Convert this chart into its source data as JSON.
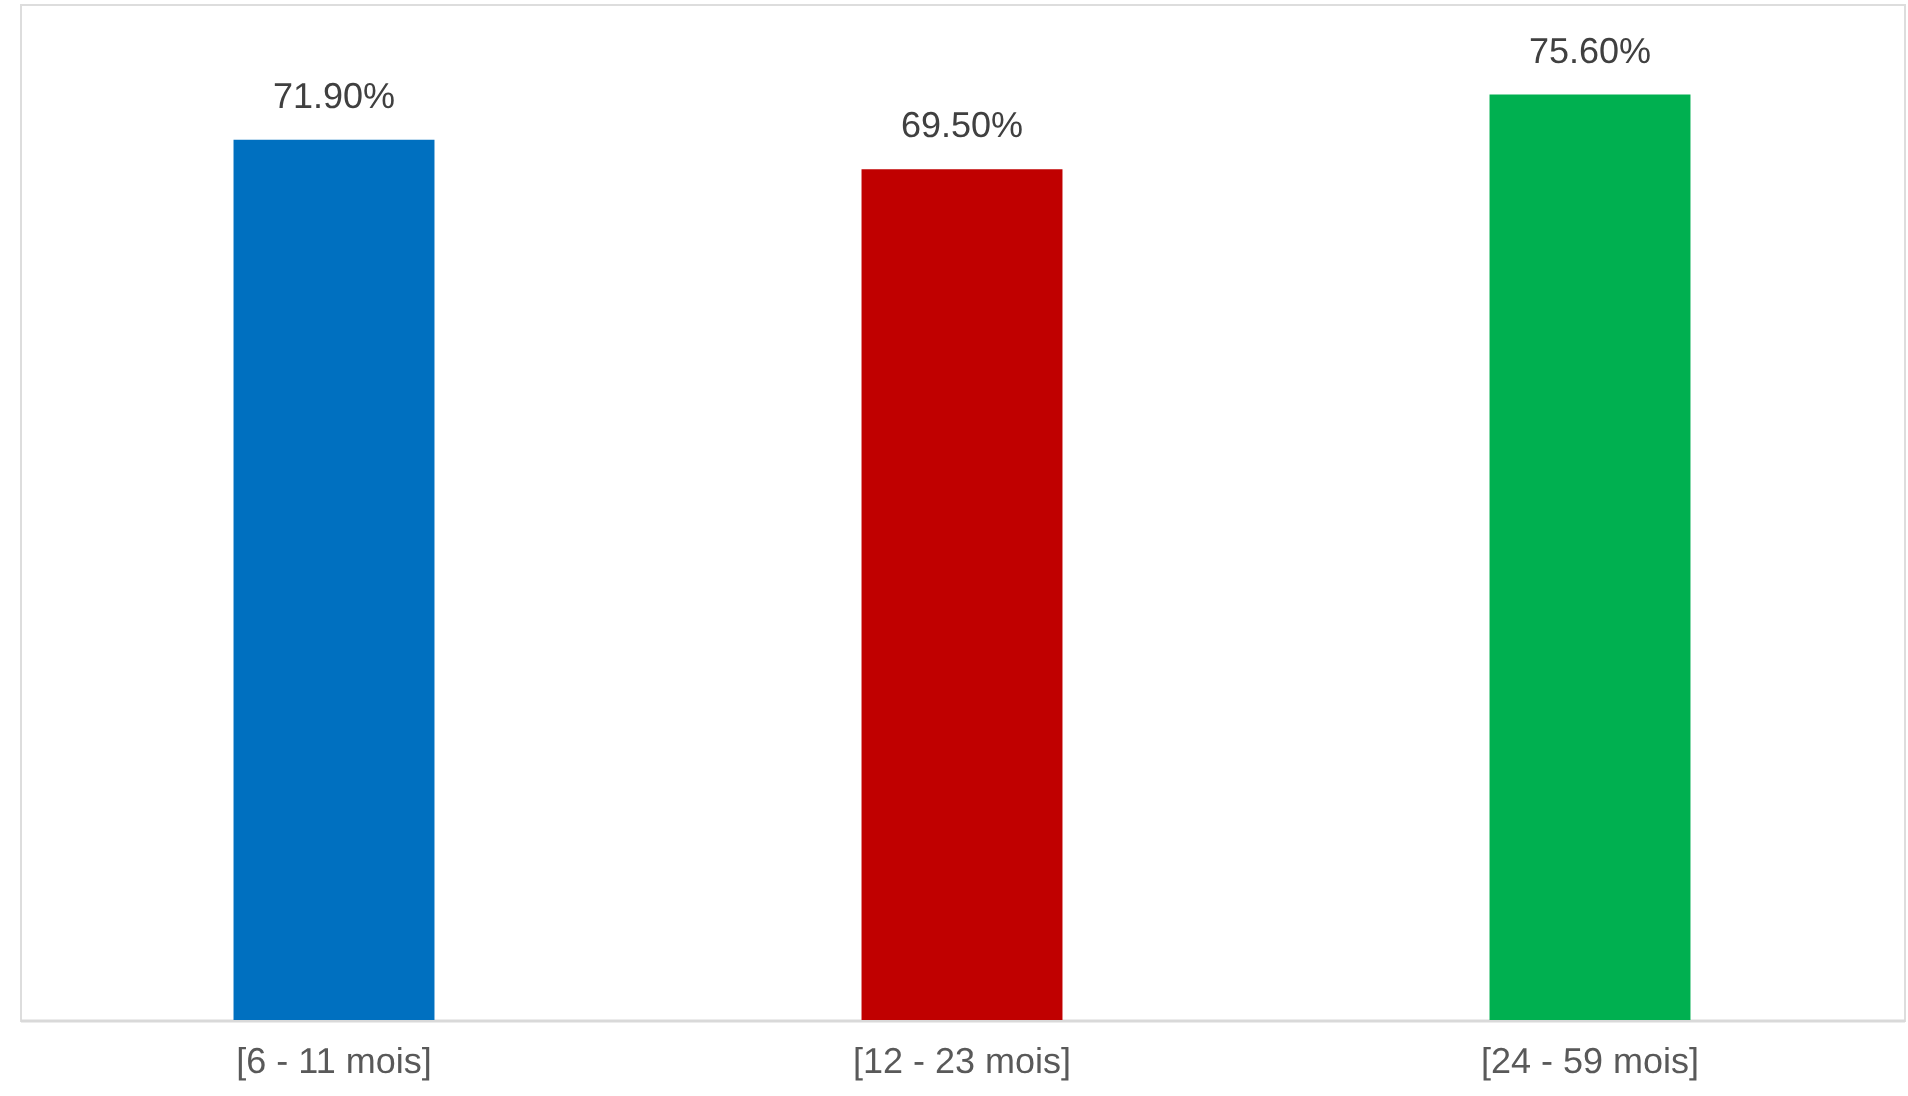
{
  "chart_data": {
    "type": "bar",
    "categories": [
      "[6 - 11 mois]",
      "[12 - 23 mois]",
      "[24 - 59 mois]"
    ],
    "values": [
      71.9,
      69.5,
      75.6
    ],
    "colors": [
      "#0070c0",
      "#c00000",
      "#00b050"
    ],
    "value_labels": [
      "71.90%",
      "69.50%",
      "75.60%"
    ],
    "ylim": [
      0,
      83
    ],
    "tick_labels": "x",
    "grid": false
  }
}
